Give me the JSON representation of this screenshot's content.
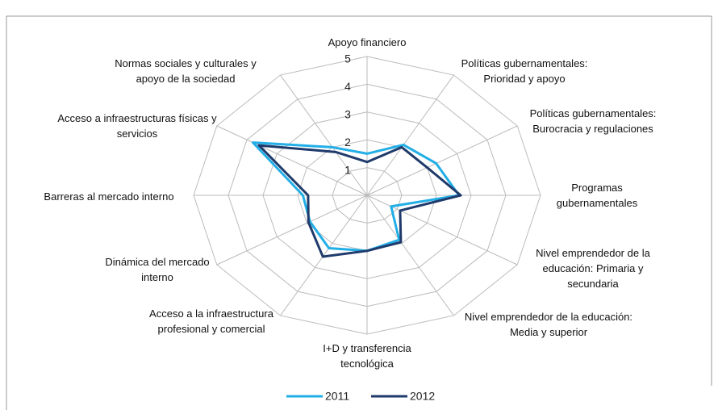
{
  "chart_data": {
    "type": "radar",
    "categories": [
      "Apoyo financiero",
      "Políticas gubernamentales: Prioridad y apoyo",
      "Políticas gubernamentales: Burocracia y regulaciones",
      "Programas gubernamentales",
      "Nivel emprendedor de la educación: Primaria y secundaria",
      "Nivel emprendedor de la educación: Media y superior",
      "I+D y transferencia tecnológica",
      "Acceso a la infraestructura profesional y comercial",
      "Dinámica del mercado interno",
      "Barreras al mercado interno",
      "Acceso a infraestructuras físicas y servicios",
      "Normas sociales y culturales y apoyo de la sociedad"
    ],
    "series": [
      {
        "name": "2011",
        "color": "#22aee6",
        "values": [
          1.5,
          2.1,
          2.3,
          2.65,
          0.8,
          1.85,
          2.0,
          2.2,
          1.9,
          1.85,
          3.8,
          2.0
        ]
      },
      {
        "name": "2012",
        "color": "#1f3a6b",
        "values": [
          1.2,
          2.0,
          2.0,
          2.7,
          1.1,
          1.95,
          2.0,
          2.55,
          1.95,
          1.7,
          3.6,
          1.8
        ]
      }
    ],
    "ylim": [
      0,
      5
    ],
    "yticks": [
      1,
      2,
      3,
      4,
      5
    ],
    "grid": true,
    "legend": "bottom"
  }
}
